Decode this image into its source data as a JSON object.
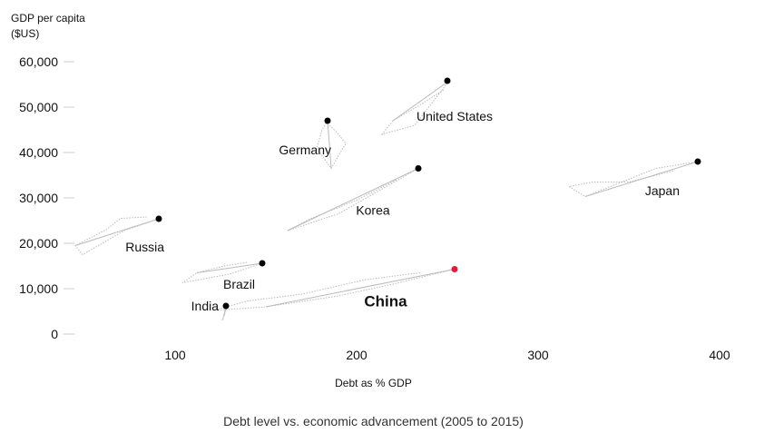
{
  "chart_data": {
    "type": "scatter",
    "title": "",
    "xlabel": "Debt as % GDP",
    "ylabel_line1": "GDP per capita",
    "ylabel_line2": "($US)",
    "caption": "Debt level vs. economic advancement (2005 to 2015)",
    "xlim": [
      40,
      410
    ],
    "ylim": [
      0,
      65000
    ],
    "x_ticks": [
      100,
      200,
      300,
      400
    ],
    "x_tick_labels": [
      "100",
      "200",
      "300",
      "400"
    ],
    "y_ticks": [
      0,
      10000,
      20000,
      30000,
      40000,
      50000,
      60000
    ],
    "y_tick_labels": [
      "0",
      "10,000",
      "20,000",
      "30,000",
      "40,000",
      "50,000",
      "60,000"
    ],
    "grid": false,
    "colors": {
      "point": "#000000",
      "highlight": "#e8173f",
      "trail": "#bbbbbb",
      "axis": "#cccccc"
    },
    "series": [
      {
        "name": "United States",
        "x": 250,
        "y": 55800,
        "highlight": false,
        "label_anchor": "start",
        "label_dx": -34,
        "label_dy": 44,
        "path": [
          [
            251,
            55800
          ],
          [
            232,
            46000
          ],
          [
            214,
            44000
          ],
          [
            220,
            47000
          ],
          [
            235,
            50500
          ],
          [
            248,
            53800
          ]
        ]
      },
      {
        "name": "Germany",
        "x": 184,
        "y": 47000,
        "highlight": false,
        "label_anchor": "end",
        "label_dx": 4,
        "label_dy": 37,
        "path": [
          [
            184,
            47000
          ],
          [
            181,
            45000
          ],
          [
            178,
            41000
          ],
          [
            186,
            36500
          ],
          [
            191,
            40000
          ],
          [
            194,
            42000
          ],
          [
            189,
            44500
          ],
          [
            185,
            46000
          ]
        ]
      },
      {
        "name": "Korea",
        "x": 234,
        "y": 36500,
        "highlight": false,
        "label_anchor": "middle",
        "label_dx": -50,
        "label_dy": 51,
        "path": [
          [
            234,
            36500
          ],
          [
            212,
            31500
          ],
          [
            190,
            26500
          ],
          [
            162,
            22800
          ],
          [
            175,
            25500
          ],
          [
            200,
            29500
          ],
          [
            222,
            34000
          ]
        ]
      },
      {
        "name": "Japan",
        "x": 388,
        "y": 38000,
        "highlight": false,
        "label_anchor": "end",
        "label_dx": -20,
        "label_dy": 37,
        "path": [
          [
            388,
            38000
          ],
          [
            365,
            36500
          ],
          [
            343,
            33000
          ],
          [
            326,
            30300
          ],
          [
            317,
            32500
          ],
          [
            330,
            33500
          ],
          [
            350,
            33500
          ],
          [
            375,
            36000
          ]
        ]
      },
      {
        "name": "Russia",
        "x": 91,
        "y": 25400,
        "highlight": false,
        "label_anchor": "end",
        "label_dx": 6,
        "label_dy": 36,
        "path": [
          [
            91,
            25400
          ],
          [
            72,
            22800
          ],
          [
            49,
            17500
          ],
          [
            45,
            19500
          ],
          [
            62,
            23000
          ],
          [
            70,
            25500
          ],
          [
            85,
            25800
          ]
        ]
      },
      {
        "name": "Brazil",
        "x": 148,
        "y": 15600,
        "highlight": false,
        "label_anchor": "end",
        "label_dx": -8,
        "label_dy": 28,
        "path": [
          [
            148,
            15600
          ],
          [
            130,
            13200
          ],
          [
            104,
            11300
          ],
          [
            112,
            13500
          ],
          [
            127,
            15000
          ],
          [
            140,
            15800
          ]
        ]
      },
      {
        "name": "India",
        "x": 128,
        "y": 6200,
        "highlight": false,
        "label_anchor": "end",
        "label_dx": -8,
        "label_dy": 5,
        "path": [
          [
            128,
            6200
          ],
          [
            127,
            4500
          ],
          [
            126,
            3000
          ],
          [
            127,
            4000
          ],
          [
            128,
            5500
          ]
        ]
      },
      {
        "name": "China",
        "x": 254,
        "y": 14300,
        "highlight": true,
        "label_anchor": "middle",
        "label_dx": -76,
        "label_dy": 41,
        "path": [
          [
            254,
            14300
          ],
          [
            220,
            11000
          ],
          [
            190,
            8400
          ],
          [
            150,
            6000
          ],
          [
            121,
            5200
          ],
          [
            140,
            7300
          ],
          [
            170,
            8800
          ],
          [
            205,
            12000
          ],
          [
            235,
            13500
          ]
        ]
      }
    ]
  }
}
